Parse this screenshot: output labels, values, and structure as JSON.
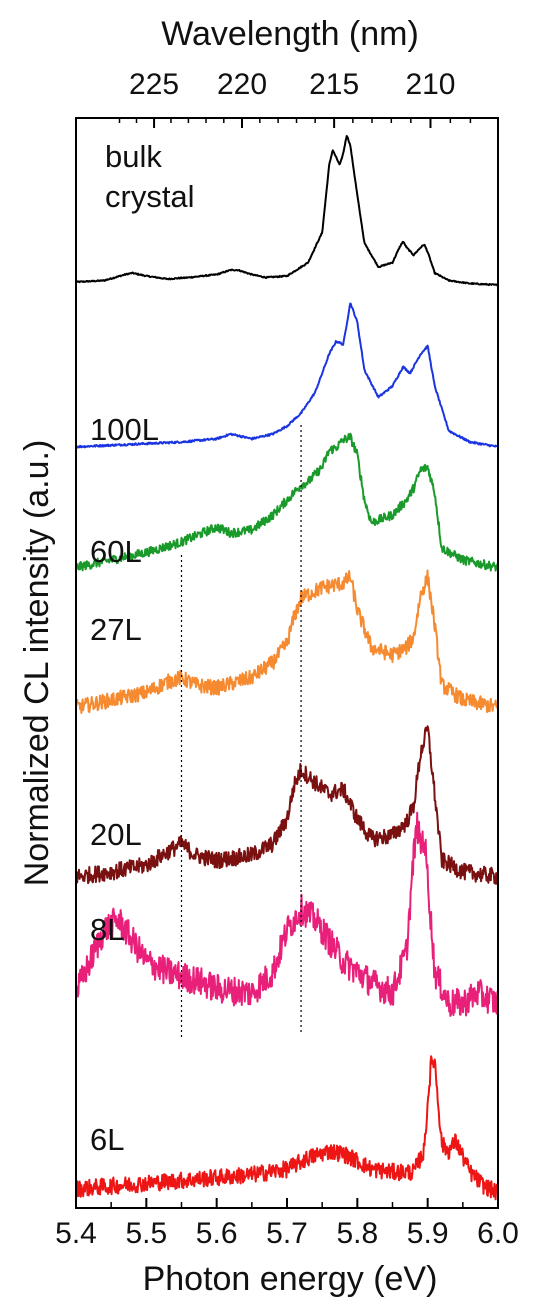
{
  "chart_data": {
    "type": "line",
    "xlabel": "Photon energy (eV)",
    "ylabel": "Normalized CL intensity (a.u.)",
    "top_xlabel": "Wavelength (nm)",
    "xlim": [
      5.4,
      6.0
    ],
    "x_ticks": [
      "5.4",
      "5.5",
      "5.6",
      "5.7",
      "5.8",
      "5.9",
      "6.0"
    ],
    "top_ticks": [
      {
        "label": "225",
        "energy": 5.511
      },
      {
        "label": "220",
        "energy": 5.636
      },
      {
        "label": "215",
        "energy": 5.767
      },
      {
        "label": "210",
        "energy": 5.904
      }
    ],
    "guide_lines_energy": [
      5.55,
      5.72
    ],
    "series": [
      {
        "name": "bulk crystal",
        "name_lines": [
          "bulk",
          "crystal"
        ],
        "color": "#000000",
        "noise": 0.004,
        "x": [
          5.4,
          5.44,
          5.47,
          5.48,
          5.5,
          5.53,
          5.56,
          5.6,
          5.62,
          5.63,
          5.65,
          5.67,
          5.7,
          5.73,
          5.75,
          5.76,
          5.765,
          5.77,
          5.775,
          5.78,
          5.785,
          5.79,
          5.8,
          5.81,
          5.83,
          5.85,
          5.86,
          5.865,
          5.87,
          5.88,
          5.89,
          5.895,
          5.9,
          5.91,
          5.93,
          5.96,
          6.0
        ],
        "y": [
          0.02,
          0.03,
          0.07,
          0.08,
          0.06,
          0.04,
          0.05,
          0.07,
          0.1,
          0.1,
          0.07,
          0.05,
          0.06,
          0.15,
          0.35,
          0.8,
          0.9,
          0.85,
          0.8,
          0.88,
          1.0,
          0.93,
          0.6,
          0.28,
          0.12,
          0.15,
          0.25,
          0.29,
          0.25,
          0.2,
          0.25,
          0.27,
          0.22,
          0.08,
          0.03,
          0.01,
          0.0
        ]
      },
      {
        "name": "100L",
        "color": "#1a35e0",
        "noise": 0.006,
        "x": [
          5.4,
          5.5,
          5.55,
          5.6,
          5.62,
          5.65,
          5.68,
          5.7,
          5.72,
          5.74,
          5.76,
          5.77,
          5.78,
          5.79,
          5.8,
          5.81,
          5.83,
          5.85,
          5.865,
          5.875,
          5.89,
          5.9,
          5.91,
          5.93,
          5.96,
          6.0
        ],
        "y": [
          0.02,
          0.04,
          0.05,
          0.07,
          0.1,
          0.07,
          0.1,
          0.15,
          0.23,
          0.36,
          0.6,
          0.68,
          0.66,
          0.92,
          0.8,
          0.5,
          0.33,
          0.4,
          0.52,
          0.48,
          0.6,
          0.65,
          0.4,
          0.12,
          0.05,
          0.02
        ]
      },
      {
        "name": "60L",
        "color": "#1a9a2a",
        "noise": 0.03,
        "x": [
          5.4,
          5.45,
          5.5,
          5.55,
          5.58,
          5.6,
          5.62,
          5.65,
          5.68,
          5.7,
          5.71,
          5.72,
          5.73,
          5.75,
          5.76,
          5.77,
          5.78,
          5.79,
          5.8,
          5.81,
          5.82,
          5.85,
          5.87,
          5.88,
          5.89,
          5.9,
          5.91,
          5.92,
          5.95,
          6.0
        ],
        "y": [
          0.05,
          0.1,
          0.15,
          0.22,
          0.28,
          0.32,
          0.28,
          0.3,
          0.4,
          0.5,
          0.55,
          0.6,
          0.62,
          0.72,
          0.83,
          0.85,
          0.9,
          0.92,
          0.8,
          0.5,
          0.35,
          0.4,
          0.5,
          0.58,
          0.7,
          0.72,
          0.55,
          0.18,
          0.1,
          0.05
        ]
      },
      {
        "name": "27L",
        "color": "#f58a30",
        "noise": 0.05,
        "x": [
          5.4,
          5.45,
          5.5,
          5.53,
          5.55,
          5.57,
          5.6,
          5.65,
          5.68,
          5.7,
          5.71,
          5.72,
          5.75,
          5.78,
          5.79,
          5.8,
          5.82,
          5.85,
          5.87,
          5.88,
          5.89,
          5.9,
          5.91,
          5.92,
          5.95,
          6.0
        ],
        "y": [
          0.05,
          0.1,
          0.15,
          0.22,
          0.25,
          0.2,
          0.18,
          0.25,
          0.35,
          0.48,
          0.65,
          0.78,
          0.85,
          0.88,
          0.92,
          0.7,
          0.45,
          0.4,
          0.45,
          0.52,
          0.8,
          0.92,
          0.6,
          0.2,
          0.1,
          0.05
        ]
      },
      {
        "name": "20L",
        "color": "#7a1010",
        "noise": 0.05,
        "x": [
          5.4,
          5.45,
          5.5,
          5.53,
          5.55,
          5.57,
          5.6,
          5.65,
          5.68,
          5.7,
          5.71,
          5.72,
          5.74,
          5.76,
          5.78,
          5.8,
          5.82,
          5.85,
          5.87,
          5.88,
          5.89,
          5.9,
          5.91,
          5.92,
          5.95,
          6.0
        ],
        "y": [
          0.05,
          0.08,
          0.12,
          0.2,
          0.25,
          0.18,
          0.15,
          0.18,
          0.25,
          0.4,
          0.6,
          0.7,
          0.62,
          0.55,
          0.58,
          0.4,
          0.28,
          0.3,
          0.38,
          0.48,
          0.8,
          0.95,
          0.55,
          0.15,
          0.08,
          0.05
        ]
      },
      {
        "name": "8L",
        "color": "#e8207a",
        "noise": 0.07,
        "x": [
          5.4,
          5.42,
          5.44,
          5.46,
          5.48,
          5.5,
          5.53,
          5.55,
          5.58,
          5.6,
          5.65,
          5.68,
          5.7,
          5.72,
          5.74,
          5.76,
          5.78,
          5.8,
          5.82,
          5.85,
          5.87,
          5.88,
          5.885,
          5.89,
          5.895,
          5.9,
          5.91,
          5.93,
          5.95,
          5.97,
          6.0
        ],
        "y": [
          0.2,
          0.35,
          0.5,
          0.55,
          0.45,
          0.35,
          0.3,
          0.28,
          0.25,
          0.22,
          0.2,
          0.3,
          0.5,
          0.6,
          0.55,
          0.45,
          0.35,
          0.3,
          0.25,
          0.2,
          0.4,
          0.85,
          1.0,
          0.9,
          0.95,
          0.75,
          0.3,
          0.15,
          0.15,
          0.2,
          0.15
        ]
      },
      {
        "name": "6L",
        "color": "#ee1515",
        "noise": 0.06,
        "x": [
          5.4,
          5.45,
          5.5,
          5.55,
          5.6,
          5.65,
          5.7,
          5.73,
          5.76,
          5.78,
          5.8,
          5.82,
          5.85,
          5.88,
          5.895,
          5.9,
          5.905,
          5.91,
          5.915,
          5.92,
          5.93,
          5.94,
          5.96,
          5.98,
          6.0
        ],
        "y": [
          0.08,
          0.1,
          0.12,
          0.14,
          0.16,
          0.18,
          0.22,
          0.3,
          0.35,
          0.33,
          0.28,
          0.22,
          0.2,
          0.2,
          0.35,
          0.7,
          0.98,
          1.0,
          0.7,
          0.4,
          0.35,
          0.42,
          0.2,
          0.1,
          0.05
        ]
      }
    ]
  }
}
